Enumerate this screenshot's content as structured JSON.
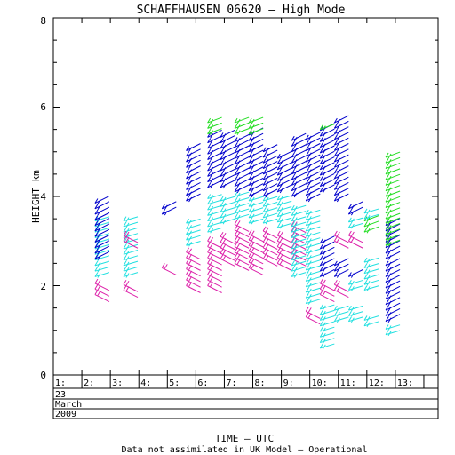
{
  "chart_data": {
    "type": "wind-profile",
    "title": "SCHAFFHAUSEN 06620 – High Mode",
    "ylabel": "HEIGHT km",
    "xlabel": "TIME – UTC",
    "footnote": "Data not assimilated in UK Model – Operational",
    "ylim": [
      0,
      8
    ],
    "y_ticks": [
      "0",
      "2",
      "4",
      "6",
      "8"
    ],
    "xlim": [
      1,
      14.5
    ],
    "x_tick_labels": [
      "1:",
      "2:",
      "3:",
      "4:",
      "5:",
      "6:",
      "7:",
      "8:",
      "9:",
      "10:",
      "11:",
      "12:",
      "13:"
    ],
    "date_rows": [
      "23",
      "March",
      "2009"
    ],
    "colors": {
      "blue": "#0000cc",
      "cyan": "#22e0e0",
      "magenta": "#dd22aa",
      "green": "#22dd22"
    },
    "profiles": [
      {
        "time": 2.65,
        "segments": [
          {
            "color": "magenta",
            "from": 1.8,
            "to": 2.05
          },
          {
            "color": "cyan",
            "from": 2.2,
            "to": 3.5
          },
          {
            "color": "blue",
            "from": 2.6,
            "to": 3.95
          }
        ]
      },
      {
        "time": 3.65,
        "segments": [
          {
            "color": "magenta",
            "from": 1.9,
            "to": 2.1
          },
          {
            "color": "cyan",
            "from": 2.2,
            "to": 3.5
          },
          {
            "color": "magenta",
            "from": 3.0,
            "to": 3.2
          }
        ]
      },
      {
        "time": 5.0,
        "segments": [
          {
            "color": "magenta",
            "from": 2.4,
            "to": 2.5
          },
          {
            "color": "blue",
            "from": 3.6,
            "to": 3.8
          }
        ]
      },
      {
        "time": 5.85,
        "segments": [
          {
            "color": "magenta",
            "from": 2.0,
            "to": 2.8
          },
          {
            "color": "cyan",
            "from": 2.9,
            "to": 3.5
          },
          {
            "color": "blue",
            "from": 3.9,
            "to": 5.1
          }
        ]
      },
      {
        "time": 6.6,
        "segments": [
          {
            "color": "magenta",
            "from": 2.0,
            "to": 3.0
          },
          {
            "color": "cyan",
            "from": 3.2,
            "to": 4.0
          },
          {
            "color": "blue",
            "from": 4.2,
            "to": 5.4
          },
          {
            "color": "green",
            "from": 5.4,
            "to": 5.7
          }
        ]
      },
      {
        "time": 7.05,
        "segments": [
          {
            "color": "magenta",
            "from": 2.6,
            "to": 3.2
          },
          {
            "color": "cyan",
            "from": 3.4,
            "to": 4.0
          },
          {
            "color": "blue",
            "from": 4.2,
            "to": 5.4
          }
        ]
      },
      {
        "time": 7.55,
        "segments": [
          {
            "color": "magenta",
            "from": 2.5,
            "to": 3.4
          },
          {
            "color": "cyan",
            "from": 3.5,
            "to": 4.0
          },
          {
            "color": "blue",
            "from": 4.1,
            "to": 5.3
          },
          {
            "color": "green",
            "from": 5.4,
            "to": 5.7
          }
        ]
      },
      {
        "time": 8.05,
        "segments": [
          {
            "color": "magenta",
            "from": 2.4,
            "to": 3.2
          },
          {
            "color": "cyan",
            "from": 3.4,
            "to": 4.0
          },
          {
            "color": "blue",
            "from": 4.0,
            "to": 5.4
          },
          {
            "color": "green",
            "from": 5.4,
            "to": 5.7
          }
        ]
      },
      {
        "time": 8.55,
        "segments": [
          {
            "color": "magenta",
            "from": 2.6,
            "to": 3.3
          },
          {
            "color": "cyan",
            "from": 3.4,
            "to": 4.0
          },
          {
            "color": "blue",
            "from": 4.0,
            "to": 5.0
          }
        ]
      },
      {
        "time": 9.05,
        "segments": [
          {
            "color": "magenta",
            "from": 2.5,
            "to": 3.2
          },
          {
            "color": "cyan",
            "from": 3.3,
            "to": 4.0
          },
          {
            "color": "blue",
            "from": 4.1,
            "to": 4.9
          }
        ]
      },
      {
        "time": 9.55,
        "segments": [
          {
            "color": "magenta",
            "from": 2.6,
            "to": 3.4
          },
          {
            "color": "cyan",
            "from": 2.2,
            "to": 3.7
          },
          {
            "color": "blue",
            "from": 4.0,
            "to": 5.3
          }
        ]
      },
      {
        "time": 10.05,
        "segments": [
          {
            "color": "magenta",
            "from": 1.3,
            "to": 1.45
          },
          {
            "color": "cyan",
            "from": 1.6,
            "to": 3.7
          },
          {
            "color": "blue",
            "from": 3.9,
            "to": 5.3
          }
        ]
      },
      {
        "time": 10.55,
        "segments": [
          {
            "color": "cyan",
            "from": 0.6,
            "to": 1.5
          },
          {
            "color": "magenta",
            "from": 1.8,
            "to": 2.1
          },
          {
            "color": "blue",
            "from": 2.2,
            "to": 3.0
          },
          {
            "color": "blue",
            "from": 4.1,
            "to": 5.5
          },
          {
            "color": "green",
            "from": 5.5,
            "to": 5.6
          }
        ]
      },
      {
        "time": 11.05,
        "segments": [
          {
            "color": "cyan",
            "from": 1.2,
            "to": 1.5
          },
          {
            "color": "magenta",
            "from": 1.9,
            "to": 2.1
          },
          {
            "color": "blue",
            "from": 2.2,
            "to": 2.5
          },
          {
            "color": "magenta",
            "from": 3.0,
            "to": 3.2
          },
          {
            "color": "blue",
            "from": 3.9,
            "to": 5.7
          }
        ]
      },
      {
        "time": 11.55,
        "segments": [
          {
            "color": "cyan",
            "from": 1.2,
            "to": 1.5
          },
          {
            "color": "cyan",
            "from": 1.9,
            "to": 2.1
          },
          {
            "color": "blue",
            "from": 2.2,
            "to": 2.3
          },
          {
            "color": "magenta",
            "from": 3.0,
            "to": 3.2
          },
          {
            "color": "cyan",
            "from": 3.3,
            "to": 3.5
          },
          {
            "color": "blue",
            "from": 3.6,
            "to": 3.8
          }
        ]
      },
      {
        "time": 12.1,
        "segments": [
          {
            "color": "cyan",
            "from": 1.1,
            "to": 1.3
          },
          {
            "color": "cyan",
            "from": 1.9,
            "to": 2.6
          },
          {
            "color": "green",
            "from": 3.2,
            "to": 3.5
          },
          {
            "color": "cyan",
            "from": 3.5,
            "to": 3.7
          }
        ]
      },
      {
        "time": 12.85,
        "segments": [
          {
            "color": "cyan",
            "from": 0.9,
            "to": 1.1
          },
          {
            "color": "blue",
            "from": 1.2,
            "to": 2.5
          },
          {
            "color": "blue",
            "from": 2.6,
            "to": 3.4
          },
          {
            "color": "green",
            "from": 2.9,
            "to": 3.5
          },
          {
            "color": "green",
            "from": 3.5,
            "to": 4.9
          }
        ]
      }
    ]
  }
}
